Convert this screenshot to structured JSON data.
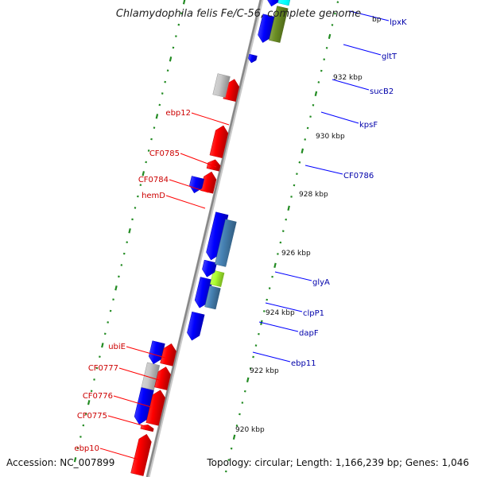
{
  "title": "Chlamydophila felis Fe/C-56, complete genome",
  "accession": "Accession: NC_007899",
  "topology": "Topology: circular; Length: 1,166,239 bp; Genes: 1,046",
  "colors": {
    "forward_gene": "#ff0000",
    "reverse_gene": "#0000ff",
    "forward_label": "#cc0000",
    "reverse_label": "#0000aa",
    "backbone": "#888888",
    "tick": "#228b22",
    "gray_feature": "#c8c8c8",
    "cyan_feature": "#00ffff",
    "olive_feature": "#6b8e23",
    "steelblue_feature": "#4682b4",
    "lime_feature": "#adff2f"
  },
  "scale": {
    "kbp_labels": [
      "920 kbp",
      "922 kbp",
      "924 kbp",
      "926 kbp",
      "928 kbp",
      "930 kbp",
      "932 kbp"
    ],
    "truncated_label": "bp"
  },
  "genes_left": [
    "ebp12",
    "CF0785",
    "CF0784",
    "hemD",
    "ubiE",
    "CF0777",
    "CF0776",
    "CF0775",
    "ebp10"
  ],
  "genes_right": [
    "lpxK",
    "gltT",
    "sucB2",
    "kpsF",
    "CF0786",
    "glyA",
    "clpP1",
    "dapF",
    "ebp11"
  ]
}
